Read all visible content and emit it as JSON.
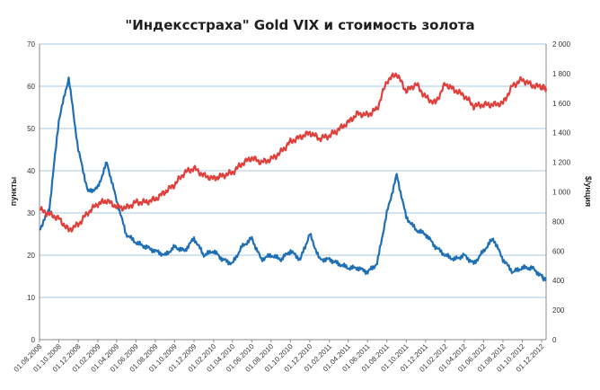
{
  "chart_data": {
    "type": "line",
    "title": "\"Индексстраха\" Gold VIX и стоимость золота",
    "ylabel_left": "пункты",
    "ylabel_right": "$/унция",
    "ylim_left": [
      0,
      70
    ],
    "ylim_right": [
      0,
      2000
    ],
    "yticks_left": [
      "0",
      "10",
      "20",
      "30",
      "40",
      "50",
      "60",
      "70"
    ],
    "yticks_right": [
      "0",
      "200",
      "400",
      "600",
      "800",
      "1 000",
      "1 200",
      "1 400",
      "1 600",
      "1 800",
      "2 000"
    ],
    "grid": "horizontal",
    "legend": "none",
    "x_tick_labels": [
      "01.08.2008",
      "01.10.2008",
      "01.12.2008",
      "01.02.2009",
      "01.04.2009",
      "01.06.2009",
      "01.08.2009",
      "01.10.2009",
      "01.12.2009",
      "01.02.2010",
      "01.04.2010",
      "01.06.2010",
      "01.08.2010",
      "01.10.2010",
      "01.12.2010",
      "01.02.2011",
      "01.04.2011",
      "01.06.2011",
      "01.08.2011",
      "01.10.2011",
      "01.12.2011",
      "01.02.2012",
      "01.04.2012",
      "01.06.2012",
      "01.08.2012",
      "01.10.2012",
      "01.12.2012"
    ],
    "x": [
      "01.08.2008",
      "01.09.2008",
      "01.10.2008",
      "01.11.2008",
      "01.12.2008",
      "01.01.2009",
      "01.02.2009",
      "01.03.2009",
      "01.04.2009",
      "01.05.2009",
      "01.06.2009",
      "01.07.2009",
      "01.08.2009",
      "01.09.2009",
      "01.10.2009",
      "01.11.2009",
      "01.12.2009",
      "01.01.2010",
      "01.02.2010",
      "01.03.2010",
      "01.04.2010",
      "01.05.2010",
      "01.06.2010",
      "01.07.2010",
      "01.08.2010",
      "01.09.2010",
      "01.10.2010",
      "01.11.2010",
      "01.12.2010",
      "01.01.2011",
      "01.02.2011",
      "01.03.2011",
      "01.04.2011",
      "01.05.2011",
      "01.06.2011",
      "01.07.2011",
      "01.08.2011",
      "01.09.2011",
      "01.10.2011",
      "01.11.2011",
      "01.12.2011",
      "01.01.2012",
      "01.02.2012",
      "01.03.2012",
      "01.04.2012",
      "01.05.2012",
      "01.06.2012",
      "01.07.2012",
      "01.08.2012",
      "01.09.2012",
      "01.10.2012",
      "01.11.2012",
      "01.12.2012",
      "15.12.2012"
    ],
    "series": [
      {
        "axis": "left",
        "color": "#1f6fb5",
        "values": [
          26,
          31,
          52,
          62,
          45,
          35,
          36,
          42,
          33,
          25,
          23,
          22,
          21,
          20,
          22,
          21,
          24,
          20,
          21,
          19,
          18,
          22,
          24,
          19,
          20,
          19,
          21,
          19,
          25,
          19,
          19,
          18,
          17,
          17,
          16,
          18,
          30,
          39,
          29,
          26,
          25,
          22,
          20,
          19,
          20,
          18,
          21,
          24,
          19,
          16,
          17,
          17,
          15,
          14
        ]
      },
      {
        "axis": "right",
        "color": "#e0403c",
        "values": [
          880,
          850,
          820,
          740,
          780,
          860,
          920,
          940,
          900,
          890,
          930,
          930,
          950,
          1000,
          1050,
          1130,
          1160,
          1110,
          1090,
          1110,
          1130,
          1190,
          1230,
          1200,
          1220,
          1270,
          1340,
          1370,
          1400,
          1360,
          1380,
          1420,
          1470,
          1530,
          1520,
          1560,
          1750,
          1800,
          1680,
          1730,
          1640,
          1600,
          1730,
          1690,
          1650,
          1580,
          1590,
          1590,
          1600,
          1720,
          1760,
          1720,
          1710,
          1700
        ]
      }
    ]
  }
}
